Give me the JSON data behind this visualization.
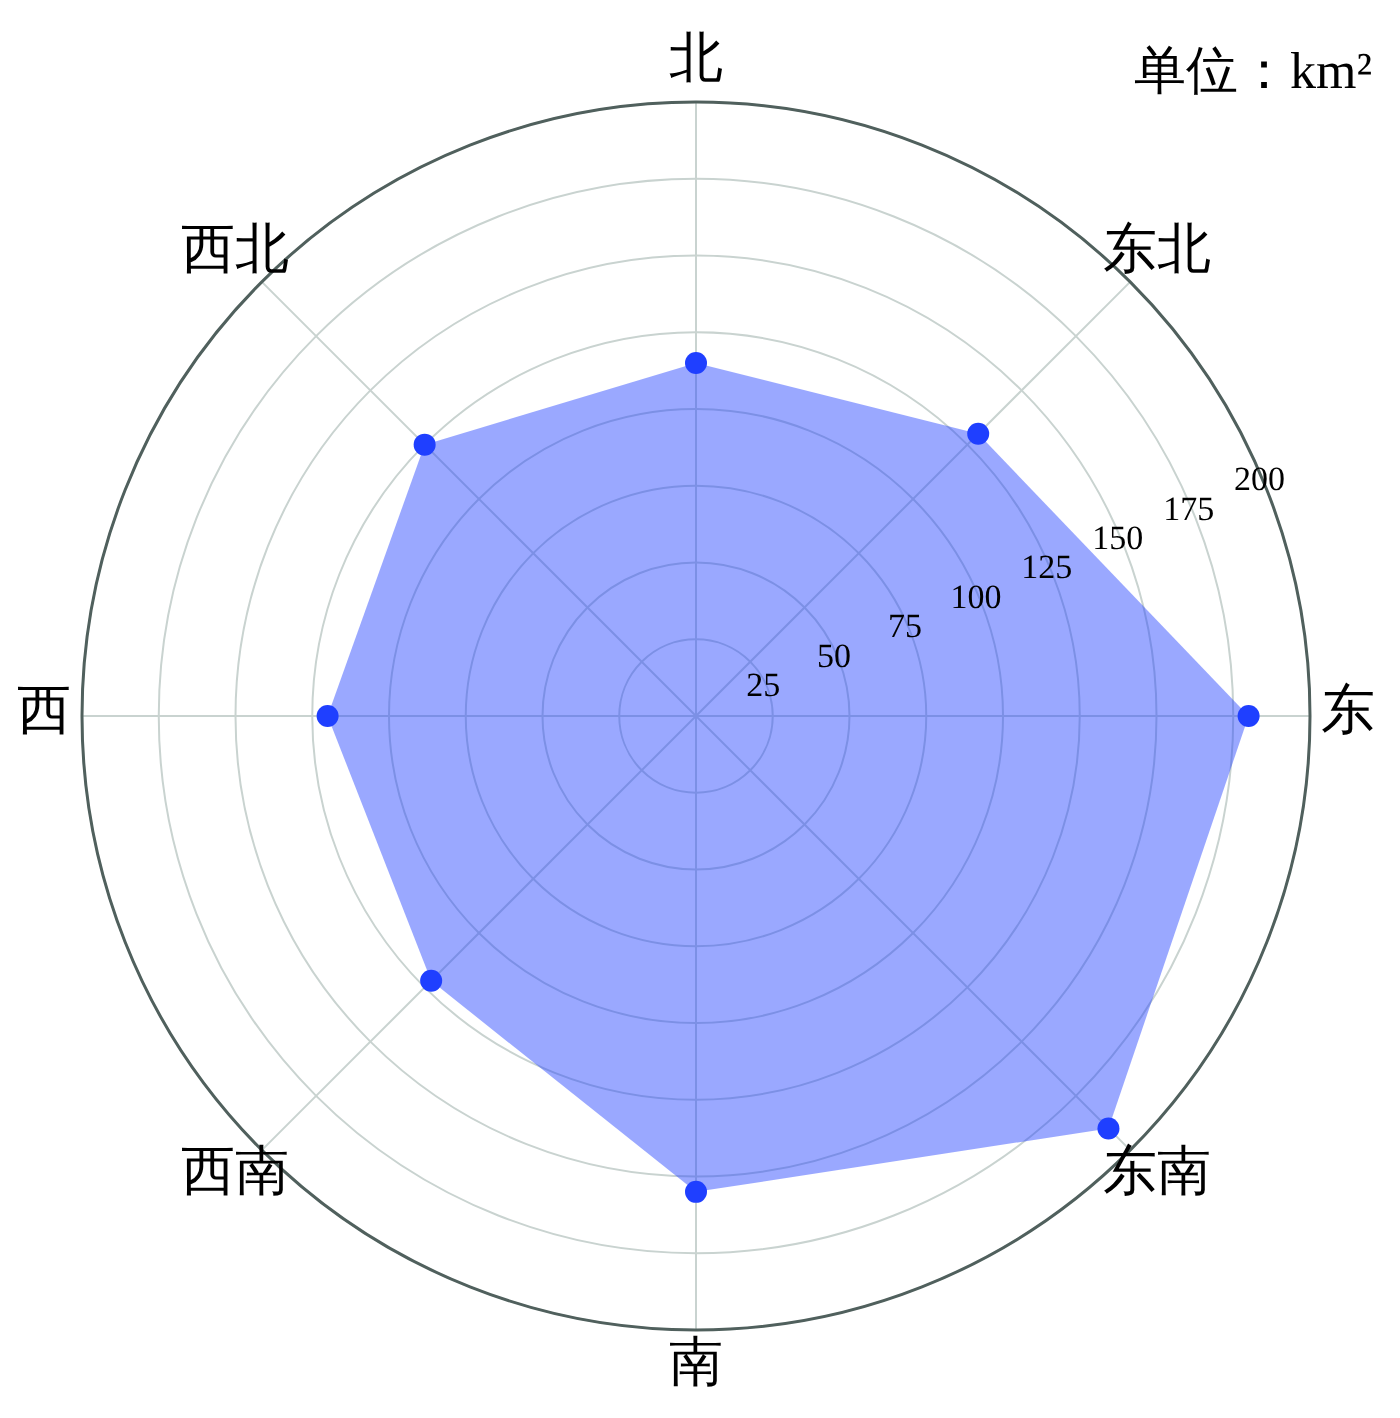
{
  "chart_data": {
    "type": "radar",
    "annotations": [
      "单位：km²"
    ],
    "categories": [
      "北",
      "东北",
      "东",
      "东南",
      "南",
      "西南",
      "西",
      "西北"
    ],
    "series": [
      {
        "color": "#1f3fff",
        "values": [
          115,
          130,
          180,
          190,
          155,
          122,
          120,
          125
        ]
      }
    ],
    "ylim": [
      0,
      200
    ],
    "yticks": [
      25,
      50,
      75,
      100,
      125,
      150,
      175,
      200
    ],
    "grid": true,
    "marker": "circle"
  }
}
